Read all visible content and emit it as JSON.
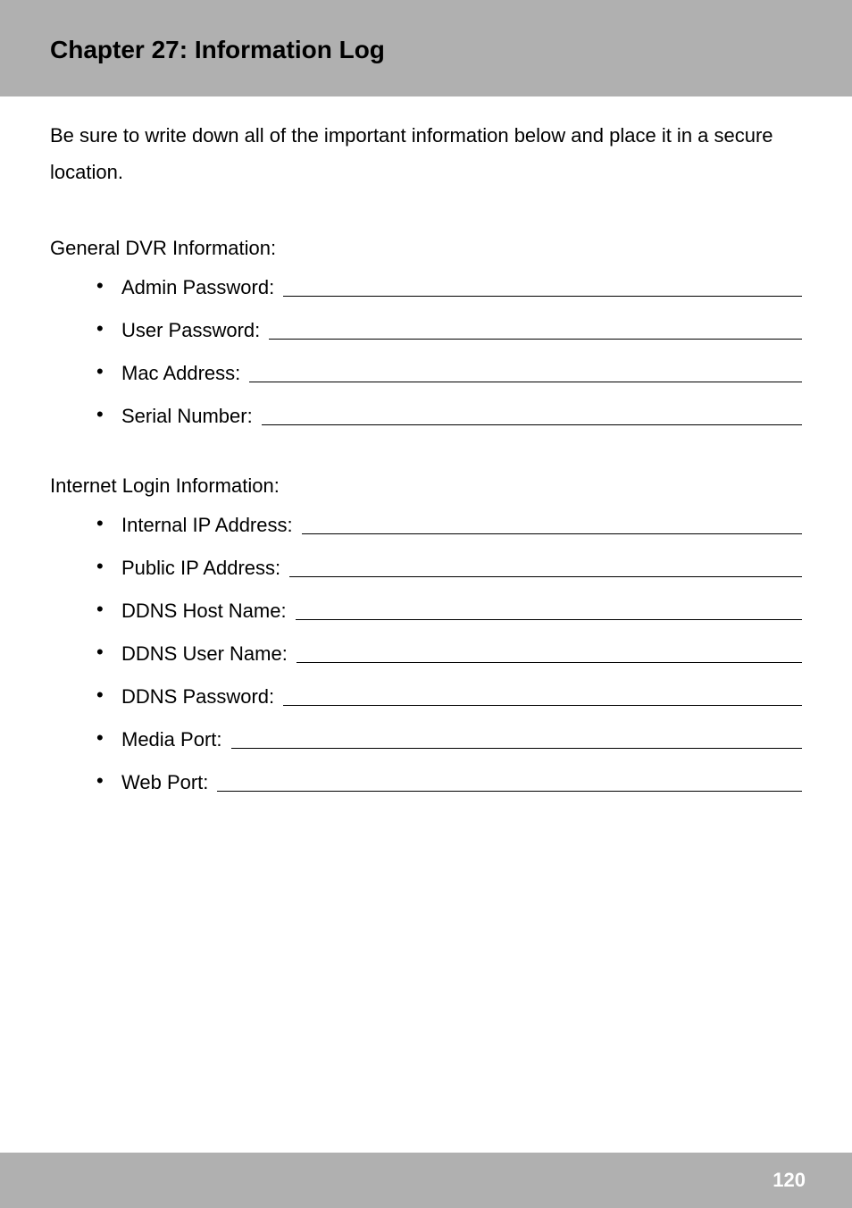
{
  "header": {
    "title": "Chapter 27: Information Log"
  },
  "intro": "Be sure to write down all of the important information below and place it in a secure location.",
  "sections": [
    {
      "heading": "General DVR Information:",
      "items": [
        "Admin Password:",
        "User Password:",
        "Mac Address:",
        "Serial Number:"
      ]
    },
    {
      "heading": "Internet Login Information:",
      "items": [
        "Internal IP Address:",
        "Public IP Address:",
        "DDNS Host Name:",
        "DDNS User Name:",
        "DDNS Password:",
        "Media Port:",
        "Web Port:"
      ]
    }
  ],
  "footer": {
    "page_number": "120"
  },
  "colors": {
    "band_bg": "#b0b0b0",
    "text": "#000000",
    "page_number": "#ffffff"
  },
  "typography": {
    "title_fontsize": 28,
    "body_fontsize": 22,
    "font_family": "Arial"
  }
}
